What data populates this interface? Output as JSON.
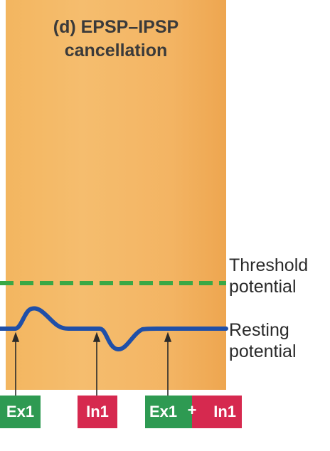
{
  "panel": {
    "title_line1": "(d) EPSP–IPSP",
    "title_line2": "cancellation",
    "background_color": "#f3b663"
  },
  "labels": {
    "threshold_line1": "Threshold",
    "threshold_line2": "potential",
    "resting_line1": "Resting",
    "resting_line2": "potential"
  },
  "stimuli": {
    "ex1": "Ex1",
    "in1": "In1",
    "combo_ex1": "Ex1",
    "plus": "+",
    "combo_in1": "In1"
  },
  "colors": {
    "excitatory": "#2e9a52",
    "inhibitory": "#d6294f",
    "membrane_trace": "#1f4fa8",
    "threshold_line": "#3aa845"
  }
}
